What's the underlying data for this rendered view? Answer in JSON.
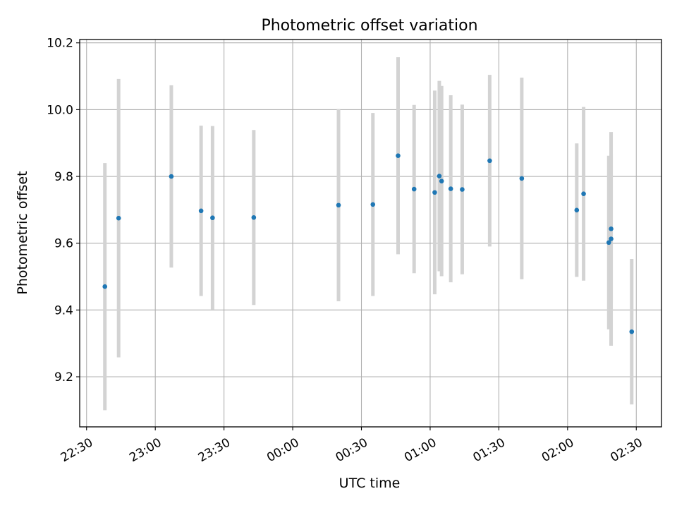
{
  "chart_data": {
    "type": "scatter",
    "title": "Photometric offset variation",
    "xlabel": "UTC time",
    "ylabel": "Photometric offset",
    "x_axis_type": "time",
    "xlim": [
      "22:27",
      "02:41"
    ],
    "ylim": [
      9.05,
      10.21
    ],
    "x_ticks": [
      "22:30",
      "23:00",
      "23:30",
      "00:00",
      "00:30",
      "01:00",
      "01:30",
      "02:00",
      "02:30"
    ],
    "y_ticks": [
      9.2,
      9.4,
      9.6,
      9.8,
      10.0,
      10.2
    ],
    "y_tick_labels": [
      "9.2",
      "9.4",
      "9.6",
      "9.8",
      "10.0",
      "10.2"
    ],
    "grid": true,
    "point_color": "#1f77b4",
    "errorbar_color": "#d3d3d3",
    "points": [
      {
        "time": "22:38",
        "y": 9.47,
        "err": 0.37
      },
      {
        "time": "22:44",
        "y": 9.675,
        "err": 0.417
      },
      {
        "time": "23:07",
        "y": 9.8,
        "err": 0.273
      },
      {
        "time": "23:20",
        "y": 9.697,
        "err": 0.255
      },
      {
        "time": "23:25",
        "y": 9.676,
        "err": 0.275
      },
      {
        "time": "23:43",
        "y": 9.677,
        "err": 0.262
      },
      {
        "time": "00:20",
        "y": 9.714,
        "err": 0.288
      },
      {
        "time": "00:35",
        "y": 9.716,
        "err": 0.274
      },
      {
        "time": "00:46",
        "y": 9.862,
        "err": 0.295
      },
      {
        "time": "00:53",
        "y": 9.762,
        "err": 0.252
      },
      {
        "time": "01:02",
        "y": 9.752,
        "err": 0.305
      },
      {
        "time": "01:04",
        "y": 9.801,
        "err": 0.285
      },
      {
        "time": "01:05",
        "y": 9.786,
        "err": 0.285
      },
      {
        "time": "01:09",
        "y": 9.763,
        "err": 0.28
      },
      {
        "time": "01:14",
        "y": 9.761,
        "err": 0.254
      },
      {
        "time": "01:26",
        "y": 9.847,
        "err": 0.257
      },
      {
        "time": "01:40",
        "y": 9.794,
        "err": 0.302
      },
      {
        "time": "02:04",
        "y": 9.699,
        "err": 0.2
      },
      {
        "time": "02:07",
        "y": 9.748,
        "err": 0.26
      },
      {
        "time": "02:18",
        "y": 9.602,
        "err": 0.26
      },
      {
        "time": "02:19",
        "y": 9.613,
        "err": 0.32
      },
      {
        "time": "02:19",
        "y": 9.643,
        "err": 0.223
      },
      {
        "time": "02:28",
        "y": 9.335,
        "err": 0.218
      }
    ]
  }
}
